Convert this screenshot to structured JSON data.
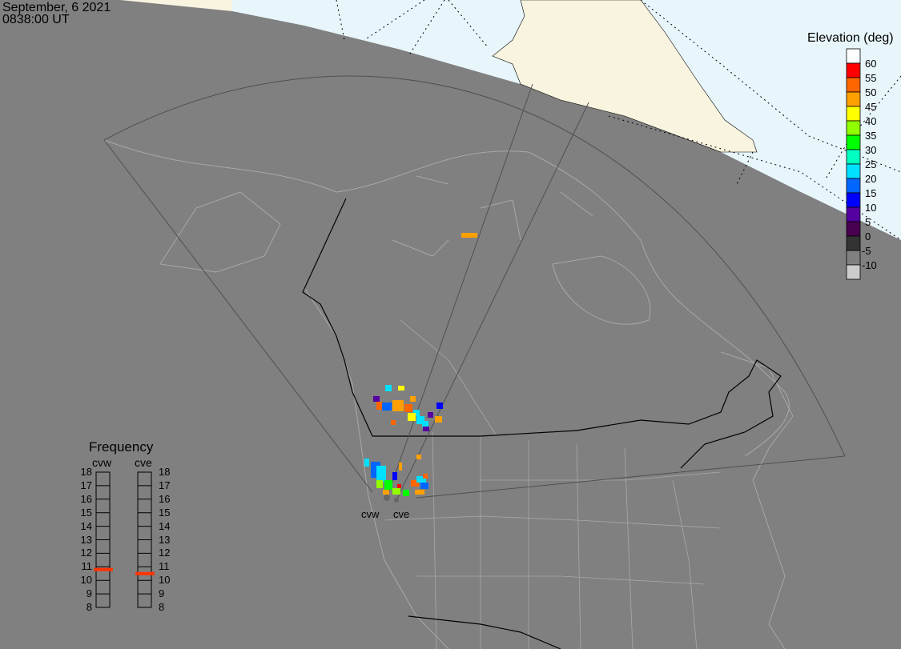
{
  "header": {
    "date": "September, 6 2021",
    "time": "0838:00 UT"
  },
  "colorbar": {
    "title": "Elevation (deg)",
    "bins": [
      {
        "label": "60",
        "color": "#ffffff"
      },
      {
        "label": "55",
        "color": "#ff0000"
      },
      {
        "label": "50",
        "color": "#ff6600"
      },
      {
        "label": "45",
        "color": "#ffa000"
      },
      {
        "label": "40",
        "color": "#ffff00"
      },
      {
        "label": "35",
        "color": "#90ff00"
      },
      {
        "label": "30",
        "color": "#00ff00"
      },
      {
        "label": "25",
        "color": "#00ffc0"
      },
      {
        "label": "20",
        "color": "#00e0ff"
      },
      {
        "label": "15",
        "color": "#0066ff"
      },
      {
        "label": "10",
        "color": "#0000ff"
      },
      {
        "label": "5",
        "color": "#5500a0"
      },
      {
        "label": "0",
        "color": "#480050"
      },
      {
        "label": "-5",
        "color": "#333333"
      },
      {
        "label": "-10",
        "color": "#808080"
      },
      {
        "label": "",
        "color": "#cccccc"
      }
    ]
  },
  "frequency": {
    "title": "Frequency",
    "unit_range": [
      8,
      18
    ],
    "ticks": [
      "18",
      "17",
      "16",
      "15",
      "14",
      "13",
      "12",
      "11",
      "10",
      "9",
      "8"
    ],
    "radars": [
      {
        "name": "cvw",
        "value_mhz": 10.8
      },
      {
        "name": "cve",
        "value_mhz": 10.5
      }
    ],
    "marker_color": "#ff3300"
  },
  "radar_sites": [
    "cvw",
    "cve"
  ],
  "colors": {
    "background": "#808080",
    "daylight_ocean": "#e8f6fc",
    "daylight_land": "#f8f4e0",
    "coast": "#b0b0b0",
    "border": "#000000"
  }
}
